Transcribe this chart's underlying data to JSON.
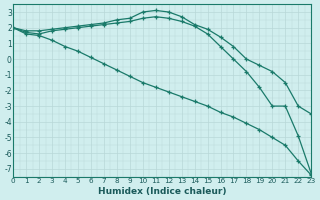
{
  "xlabel": "Humidex (Indice chaleur)",
  "background_color": "#d0eeee",
  "grid_color": "#b8d8d8",
  "line_color": "#1a7a6a",
  "xlim": [
    0,
    23
  ],
  "ylim": [
    -7.5,
    3.5
  ],
  "yticks": [
    3,
    2,
    1,
    0,
    -1,
    -2,
    -3,
    -4,
    -5,
    -6,
    -7
  ],
  "xticks": [
    0,
    1,
    2,
    3,
    4,
    5,
    6,
    7,
    8,
    9,
    10,
    11,
    12,
    13,
    14,
    15,
    16,
    17,
    18,
    19,
    20,
    21,
    22,
    23
  ],
  "series": [
    {
      "x": [
        0,
        1,
        2,
        3,
        4,
        5,
        6,
        7,
        8,
        9,
        10,
        11,
        12,
        13,
        14,
        15,
        16,
        17,
        18,
        19,
        20,
        21,
        22,
        23
      ],
      "y": [
        2.0,
        1.8,
        1.8,
        1.9,
        2.0,
        2.1,
        2.2,
        2.3,
        2.5,
        2.6,
        3.0,
        3.1,
        3.0,
        2.7,
        2.2,
        1.9,
        1.4,
        0.8,
        0.0,
        -0.4,
        -0.8,
        -1.5,
        -3.0,
        -3.5
      ]
    },
    {
      "x": [
        0,
        1,
        2,
        3,
        4,
        5,
        6,
        7,
        8,
        9,
        10,
        11,
        12,
        13,
        14,
        15,
        16,
        17,
        18,
        19,
        20,
        21,
        22,
        23
      ],
      "y": [
        2.0,
        1.6,
        1.5,
        1.2,
        0.8,
        0.5,
        0.1,
        -0.3,
        -0.7,
        -1.1,
        -1.5,
        -1.8,
        -2.1,
        -2.4,
        -2.7,
        -3.0,
        -3.4,
        -3.7,
        -4.1,
        -4.5,
        -5.0,
        -5.5,
        -6.5,
        -7.4
      ]
    },
    {
      "x": [
        0,
        1,
        2,
        3,
        4,
        5,
        6,
        7,
        8,
        9,
        10,
        11,
        12,
        13,
        14,
        15,
        16,
        17,
        18,
        19,
        20,
        21,
        22,
        23
      ],
      "y": [
        2.0,
        1.7,
        1.6,
        1.8,
        1.9,
        2.0,
        2.1,
        2.2,
        2.3,
        2.4,
        2.6,
        2.7,
        2.6,
        2.4,
        2.1,
        1.6,
        0.8,
        0.0,
        -0.8,
        -1.8,
        -3.0,
        -3.0,
        -4.9,
        -7.3
      ]
    }
  ]
}
